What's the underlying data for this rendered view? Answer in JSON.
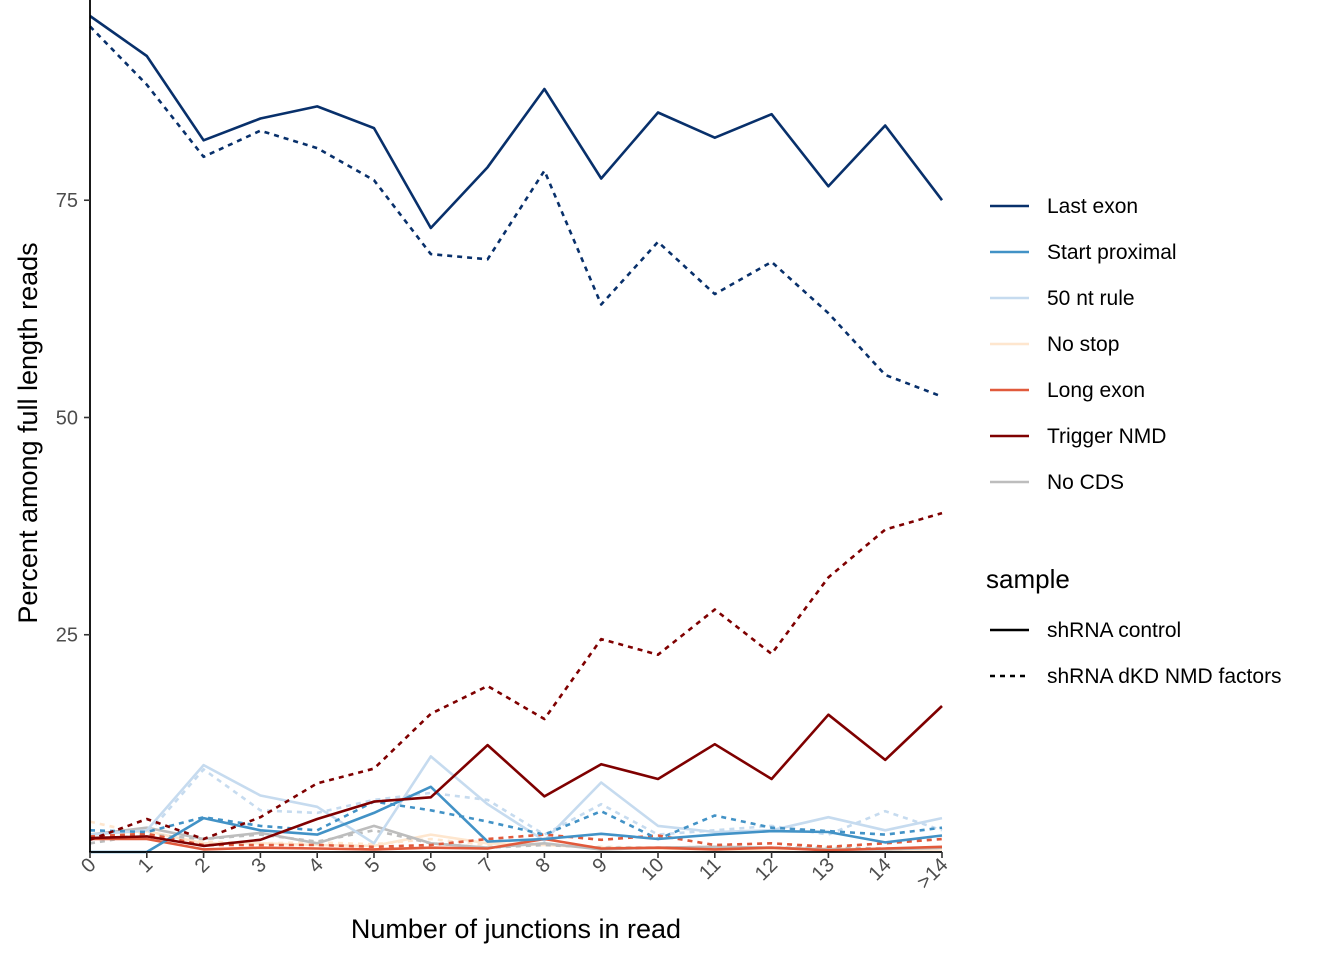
{
  "chart_data": {
    "type": "line",
    "title": "",
    "xlabel": "Number of junctions in read",
    "ylabel": "Percent among full length reads",
    "categories": [
      "0",
      "1",
      "2",
      "3",
      "4",
      "5",
      "6",
      "7",
      "8",
      "9",
      "10",
      "11",
      "12",
      "13",
      "14",
      ">14"
    ],
    "y_ticks": [
      25,
      50,
      75
    ],
    "y_tick_labels": [
      "25",
      "50",
      "75"
    ],
    "ylim": [
      0,
      96.2
    ],
    "grid": false,
    "legend_position": "right",
    "groups": [
      {
        "name": "Last exon",
        "color": "#08306b"
      },
      {
        "name": "Start proximal",
        "color": "#4292c6"
      },
      {
        "name": "50 nt rule",
        "color": "#c6dbef"
      },
      {
        "name": "No stop",
        "color": "#fee6ce"
      },
      {
        "name": "Long exon",
        "color": "#e15a3c"
      },
      {
        "name": "Trigger NMD",
        "color": "#7f0000"
      },
      {
        "name": "No CDS",
        "color": "#bdbdbd"
      }
    ],
    "sample_legend": {
      "title": "sample",
      "entries": [
        {
          "name": "shRNA control",
          "dash": "solid"
        },
        {
          "name": "shRNA dKD NMD factors",
          "dash": "dotted"
        }
      ]
    },
    "series": [
      {
        "group": "Last exon",
        "sample": "shRNA control",
        "values": [
          96.2,
          91.6,
          81.9,
          84.4,
          85.8,
          83.3,
          71.8,
          78.8,
          87.8,
          77.5,
          85.1,
          82.2,
          84.9,
          76.6,
          83.6,
          75.0
        ]
      },
      {
        "group": "Last exon",
        "sample": "shRNA dKD NMD factors",
        "values": [
          95.0,
          88.3,
          80.0,
          83.0,
          81.0,
          77.3,
          68.8,
          68.2,
          78.4,
          63.0,
          70.2,
          64.2,
          67.9,
          62.0,
          54.9,
          52.4
        ]
      },
      {
        "group": "Trigger NMD",
        "sample": "shRNA dKD NMD factors",
        "values": [
          1.4,
          3.8,
          1.5,
          4.0,
          7.9,
          9.6,
          15.9,
          19.1,
          15.3,
          24.5,
          22.7,
          27.9,
          22.8,
          31.6,
          37.1,
          39.0
        ]
      },
      {
        "group": "Trigger NMD",
        "sample": "shRNA control",
        "values": [
          1.6,
          1.8,
          0.7,
          1.4,
          3.8,
          5.8,
          6.3,
          12.3,
          6.4,
          10.1,
          8.4,
          12.4,
          8.4,
          15.8,
          10.6,
          16.8
        ]
      },
      {
        "group": "Start proximal",
        "sample": "shRNA control",
        "values": [
          0.0,
          0.0,
          3.9,
          2.5,
          2.0,
          4.5,
          7.5,
          1.2,
          1.5,
          2.1,
          1.5,
          2.0,
          2.4,
          2.3,
          1.1,
          1.9
        ]
      },
      {
        "group": "Start proximal",
        "sample": "shRNA dKD NMD factors",
        "values": [
          2.5,
          2.3,
          4.0,
          3.0,
          2.5,
          5.8,
          4.8,
          3.5,
          2.0,
          4.7,
          1.5,
          4.2,
          2.8,
          2.4,
          2.0,
          2.8
        ]
      },
      {
        "group": "50 nt rule",
        "sample": "shRNA control",
        "values": [
          2.0,
          2.5,
          10.0,
          6.5,
          5.2,
          1.0,
          11.0,
          5.5,
          1.3,
          8.0,
          3.0,
          2.3,
          2.5,
          4.0,
          2.5,
          3.9
        ]
      },
      {
        "group": "50 nt rule",
        "sample": "shRNA dKD NMD factors",
        "values": [
          1.5,
          2.0,
          9.5,
          4.8,
          4.5,
          6.0,
          6.8,
          6.0,
          2.0,
          5.5,
          2.0,
          2.5,
          3.0,
          2.0,
          4.7,
          2.5
        ]
      },
      {
        "group": "No stop",
        "sample": "shRNA control",
        "values": [
          2.0,
          2.4,
          1.0,
          1.0,
          0.8,
          0.7,
          2.0,
          1.0,
          0.8,
          0.5,
          0.4,
          0.3,
          0.3,
          0.4,
          0.3,
          0.3
        ]
      },
      {
        "group": "No stop",
        "sample": "shRNA dKD NMD factors",
        "values": [
          3.5,
          2.0,
          1.2,
          1.0,
          1.1,
          0.9,
          1.5,
          0.8,
          0.8,
          0.6,
          0.5,
          0.5,
          0.4,
          0.4,
          0.3,
          0.3
        ]
      },
      {
        "group": "Long exon",
        "sample": "shRNA control",
        "values": [
          1.5,
          1.5,
          0.3,
          0.5,
          0.4,
          0.3,
          0.5,
          0.4,
          1.5,
          0.4,
          0.5,
          0.3,
          0.5,
          0.2,
          0.4,
          0.6
        ]
      },
      {
        "group": "Long exon",
        "sample": "shRNA dKD NMD factors",
        "values": [
          1.8,
          2.1,
          0.8,
          0.8,
          0.8,
          0.6,
          0.8,
          1.5,
          2.0,
          1.4,
          1.9,
          0.8,
          1.0,
          0.6,
          1.0,
          1.5
        ]
      },
      {
        "group": "No CDS",
        "sample": "shRNA control",
        "values": [
          2.0,
          2.8,
          1.5,
          2.2,
          1.0,
          3.0,
          1.0,
          0.5,
          1.0,
          0.3,
          0.5,
          0.6,
          0.5,
          0.3,
          0.3,
          0.5
        ]
      },
      {
        "group": "No CDS",
        "sample": "shRNA dKD NMD factors",
        "values": [
          1.0,
          2.0,
          1.5,
          2.0,
          1.2,
          2.5,
          1.0,
          0.5,
          0.8,
          0.5,
          0.5,
          0.6,
          0.5,
          0.5,
          0.4,
          0.5
        ]
      }
    ]
  }
}
